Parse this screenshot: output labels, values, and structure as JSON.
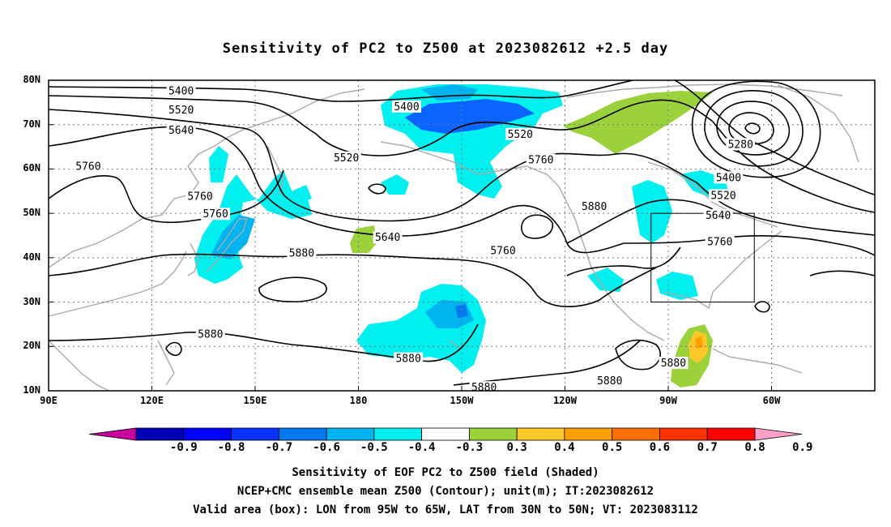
{
  "title": "Sensitivity of PC2 to Z500 at 2023082612 +2.5 day",
  "lat_labels": [
    "80N",
    "70N",
    "60N",
    "50N",
    "40N",
    "30N",
    "20N",
    "10N"
  ],
  "lon_labels": [
    "90E",
    "120E",
    "150E",
    "180",
    "150W",
    "120W",
    "90W",
    "60W"
  ],
  "contour_labels": [
    {
      "text": "5400",
      "lon": 128.5,
      "lat": 77.5
    },
    {
      "text": "5520",
      "lon": 128.5,
      "lat": 73.2
    },
    {
      "text": "5640",
      "lon": 128.5,
      "lat": 68.7
    },
    {
      "text": "5760",
      "lon": 101.5,
      "lat": 60.5
    },
    {
      "text": "5760",
      "lon": 134.0,
      "lat": 53.8
    },
    {
      "text": "5760",
      "lon": 138.5,
      "lat": 49.8
    },
    {
      "text": "5880",
      "lon": 163.5,
      "lat": 41.0
    },
    {
      "text": "5880",
      "lon": 137.0,
      "lat": 22.7
    },
    {
      "text": "5400",
      "lon": 194.0,
      "lat": 74.0
    },
    {
      "text": "5520",
      "lon": 176.5,
      "lat": 62.5
    },
    {
      "text": "5640",
      "lon": 188.5,
      "lat": 44.5
    },
    {
      "text": "5520",
      "lon": 227.0,
      "lat": 67.8
    },
    {
      "text": "5760",
      "lon": 233.0,
      "lat": 62.0
    },
    {
      "text": "5760",
      "lon": 222.0,
      "lat": 41.5
    },
    {
      "text": "5880",
      "lon": 194.5,
      "lat": 17.2
    },
    {
      "text": "5880",
      "lon": 216.5,
      "lat": 10.7
    },
    {
      "text": "5880",
      "lon": 248.5,
      "lat": 51.5
    },
    {
      "text": "5880",
      "lon": 253.0,
      "lat": 12.2
    },
    {
      "text": "5880",
      "lon": 271.5,
      "lat": 16.2
    },
    {
      "text": "5280",
      "lon": 291.0,
      "lat": 65.5
    },
    {
      "text": "5400",
      "lon": 287.5,
      "lat": 58.0
    },
    {
      "text": "5520",
      "lon": 286.0,
      "lat": 54.0
    },
    {
      "text": "5640",
      "lon": 284.5,
      "lat": 49.5
    },
    {
      "text": "5760",
      "lon": 285.0,
      "lat": 43.5
    }
  ],
  "colorbar": {
    "labels": [
      "-0.9",
      "-0.8",
      "-0.7",
      "-0.6",
      "-0.5",
      "-0.4",
      "-0.3",
      "0.3",
      "0.4",
      "0.5",
      "0.6",
      "0.7",
      "0.8",
      "0.9"
    ],
    "colors": [
      "#c8009e",
      "#0000b4",
      "#0000ff",
      "#0a32ff",
      "#0078f0",
      "#00b4f0",
      "#00f0f0",
      "#ffffff",
      "#9bd23c",
      "#ffc828",
      "#ffa000",
      "#ff6e00",
      "#ff3200",
      "#ff0000",
      "#ffa0c8"
    ]
  },
  "footer": {
    "line1": "Sensitivity of EOF PC2 to Z500 field (Shaded)",
    "line2": "NCEP+CMC ensemble mean Z500 (Contour); unit(m); IT:2023082612",
    "line3": "Valid area (box): LON from 95W to 65W, LAT from 30N to 50N; VT: 2023083112"
  },
  "valid_box": {
    "lon_min": 265,
    "lon_max": 295,
    "lat_min": 30,
    "lat_max": 50
  },
  "map_extent": {
    "lon_min": 90,
    "lon_max": 330,
    "lat_min": 10,
    "lat_max": 80
  }
}
